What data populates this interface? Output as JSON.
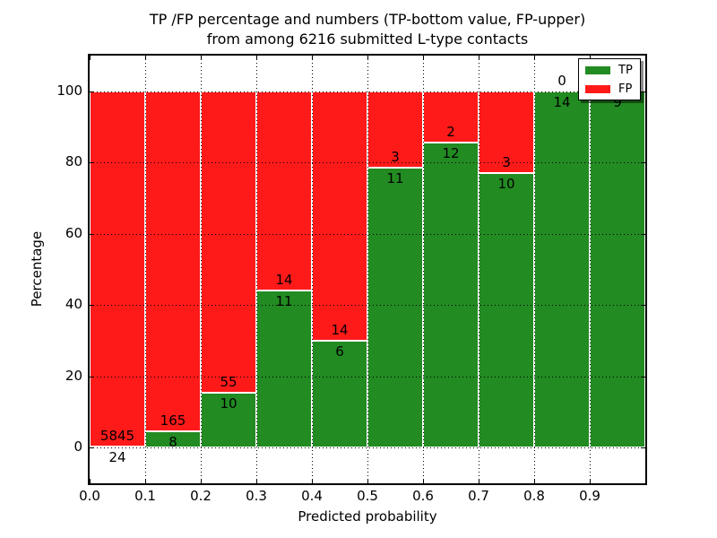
{
  "figure": {
    "title_line1": "TP /FP percentage and numbers (TP-bottom value, FP-upper)",
    "title_line2": "from among 6216 submitted L-type contacts"
  },
  "chart_data": {
    "type": "bar",
    "stacked": true,
    "title": "TP /FP percentage and numbers (TP-bottom value, FP-upper)\nfrom among 6216 submitted L-type contacts",
    "xlabel": "Predicted probability",
    "ylabel": "Percentage",
    "xlim": [
      0.0,
      1.0
    ],
    "ylim": [
      -10,
      110
    ],
    "xticks": [
      "0.0",
      "0.1",
      "0.2",
      "0.3",
      "0.4",
      "0.5",
      "0.6",
      "0.7",
      "0.8",
      "0.9"
    ],
    "yticks": [
      "0",
      "20",
      "40",
      "60",
      "80",
      "100"
    ],
    "grid": "dotted black, both axes",
    "legend": {
      "position": "upper right",
      "entries": [
        {
          "label": "TP",
          "color": "#228b22"
        },
        {
          "label": "FP",
          "color": "#ff1a1a"
        }
      ]
    },
    "total_contacts": 6216,
    "bins": [
      {
        "range": [
          0.0,
          0.1
        ],
        "tp": 24,
        "fp": 5845,
        "tp_pct": 0.41,
        "fp_pct": 99.59
      },
      {
        "range": [
          0.1,
          0.2
        ],
        "tp": 8,
        "fp": 165,
        "tp_pct": 4.62,
        "fp_pct": 95.38
      },
      {
        "range": [
          0.2,
          0.3
        ],
        "tp": 10,
        "fp": 55,
        "tp_pct": 15.38,
        "fp_pct": 84.62
      },
      {
        "range": [
          0.3,
          0.4
        ],
        "tp": 11,
        "fp": 14,
        "tp_pct": 44.0,
        "fp_pct": 56.0
      },
      {
        "range": [
          0.4,
          0.5
        ],
        "tp": 6,
        "fp": 14,
        "tp_pct": 30.0,
        "fp_pct": 70.0
      },
      {
        "range": [
          0.5,
          0.6
        ],
        "tp": 11,
        "fp": 3,
        "tp_pct": 78.57,
        "fp_pct": 21.43
      },
      {
        "range": [
          0.6,
          0.7
        ],
        "tp": 12,
        "fp": 2,
        "tp_pct": 85.71,
        "fp_pct": 14.29
      },
      {
        "range": [
          0.7,
          0.8
        ],
        "tp": 10,
        "fp": 3,
        "tp_pct": 76.92,
        "fp_pct": 23.08
      },
      {
        "range": [
          0.8,
          0.9
        ],
        "tp": 14,
        "fp": 0,
        "tp_pct": 100.0,
        "fp_pct": 0.0
      },
      {
        "range": [
          0.9,
          1.0
        ],
        "tp": 9,
        "fp": 0,
        "tp_pct": 100.0,
        "fp_pct": 0.0
      }
    ],
    "colors": {
      "tp": "#228b22",
      "fp": "#ff1a1a",
      "bar_edge": "#ffffff"
    }
  }
}
